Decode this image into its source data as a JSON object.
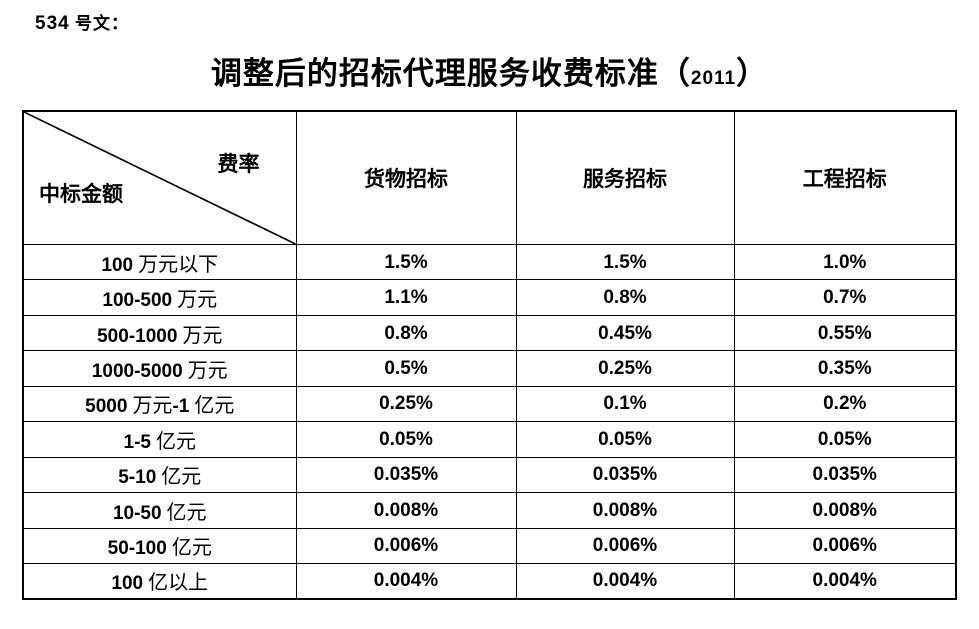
{
  "page": {
    "doc_label": "534 号文：",
    "title": "调整后的招标代理服务收费标准（2011）"
  },
  "table": {
    "corner": {
      "top_right": "费率",
      "bottom_left": "中标金额"
    },
    "columns": [
      "货物招标",
      "服务招标",
      "工程招标"
    ],
    "rows": [
      {
        "label": "100 万元以下",
        "values": [
          "1.5%",
          "1.5%",
          "1.0%"
        ]
      },
      {
        "label": "100-500 万元",
        "values": [
          "1.1%",
          "0.8%",
          "0.7%"
        ]
      },
      {
        "label": "500-1000 万元",
        "values": [
          "0.8%",
          "0.45%",
          "0.55%"
        ]
      },
      {
        "label": "1000-5000 万元",
        "values": [
          "0.5%",
          "0.25%",
          "0.35%"
        ]
      },
      {
        "label": "5000 万元-1 亿元",
        "values": [
          "0.25%",
          "0.1%",
          "0.2%"
        ]
      },
      {
        "label": "1-5 亿元",
        "values": [
          "0.05%",
          "0.05%",
          "0.05%"
        ]
      },
      {
        "label": "5-10 亿元",
        "values": [
          "0.035%",
          "0.035%",
          "0.035%"
        ]
      },
      {
        "label": "10-50 亿元",
        "values": [
          "0.008%",
          "0.008%",
          "0.008%"
        ]
      },
      {
        "label": "50-100 亿元",
        "values": [
          "0.006%",
          "0.006%",
          "0.006%"
        ]
      },
      {
        "label": "100 亿以上",
        "values": [
          "0.004%",
          "0.004%",
          "0.004%"
        ]
      }
    ]
  },
  "colors": {
    "text": "#000000",
    "border": "#000000",
    "background": "#ffffff"
  }
}
